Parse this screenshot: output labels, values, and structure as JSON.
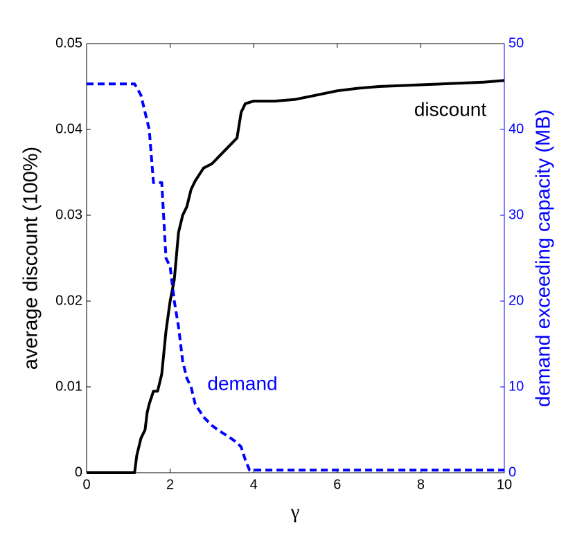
{
  "chart_data": {
    "type": "line",
    "xlabel": "γ",
    "ylabel": "average discount (100%)",
    "y2label": "demand exceeding capacity (MB)",
    "xlim": [
      0,
      10
    ],
    "xticks": [
      0,
      2,
      4,
      6,
      8,
      10
    ],
    "ylim": [
      0,
      0.05
    ],
    "yticks": [
      0,
      0.01,
      0.02,
      0.03,
      0.04,
      0.05
    ],
    "y2lim": [
      0,
      50
    ],
    "y2ticks": [
      0,
      10,
      20,
      30,
      40,
      50
    ],
    "y2color": "#0000ff",
    "series": [
      {
        "name": "discount",
        "color": "#000000",
        "dash": false,
        "x": [
          0,
          1.15,
          1.2,
          1.3,
          1.4,
          1.45,
          1.5,
          1.6,
          1.7,
          1.8,
          1.9,
          2.0,
          2.1,
          2.2,
          2.3,
          2.4,
          2.5,
          2.6,
          2.8,
          3.0,
          3.2,
          3.4,
          3.6,
          3.7,
          3.8,
          4.0,
          4.2,
          4.5,
          5,
          5.5,
          6,
          6.5,
          7,
          7.5,
          8,
          8.5,
          9,
          9.5,
          10
        ],
        "values": [
          0,
          0,
          0.002,
          0.004,
          0.005,
          0.007,
          0.008,
          0.0095,
          0.0095,
          0.0115,
          0.0165,
          0.02,
          0.0225,
          0.028,
          0.03,
          0.031,
          0.033,
          0.034,
          0.0355,
          0.036,
          0.037,
          0.038,
          0.039,
          0.042,
          0.043,
          0.0433,
          0.0433,
          0.0433,
          0.0435,
          0.044,
          0.0445,
          0.0448,
          0.045,
          0.0451,
          0.0452,
          0.0453,
          0.0454,
          0.0455,
          0.0457
        ]
      },
      {
        "name": "demand",
        "color": "#0000ff",
        "dash": true,
        "axis": "y2",
        "x": [
          0,
          1.15,
          1.3,
          1.5,
          1.6,
          1.8,
          1.9,
          2.0,
          2.1,
          2.2,
          2.3,
          2.4,
          2.5,
          2.6,
          2.8,
          3.0,
          3.2,
          3.4,
          3.6,
          3.7,
          3.8,
          3.9,
          4.0,
          5,
          6,
          7,
          8,
          9,
          10
        ],
        "values": [
          45.3,
          45.3,
          44,
          40,
          33.8,
          33.8,
          25,
          24,
          20,
          17,
          13,
          11,
          10,
          8,
          6.5,
          5.5,
          4.8,
          4.2,
          3.5,
          3,
          1.5,
          0.3,
          0.3,
          0.3,
          0.3,
          0.3,
          0.3,
          0.3,
          0.3
        ]
      }
    ]
  }
}
